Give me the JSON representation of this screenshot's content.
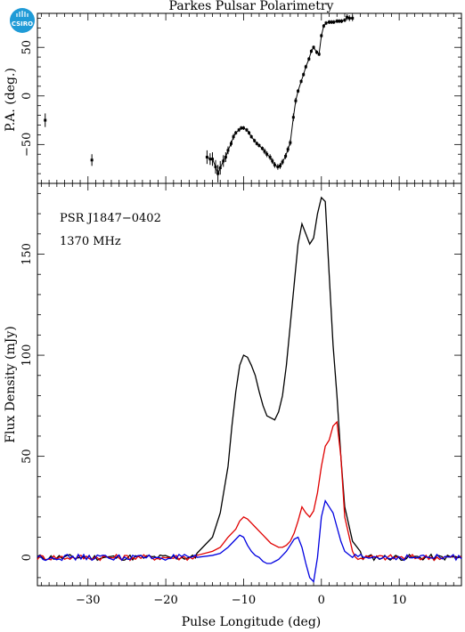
{
  "logo": {
    "text": "CSIRO",
    "color": "#1f9bd7"
  },
  "chart_data": [
    {
      "type": "scatter",
      "title": "Parkes Pulsar Polarimetry",
      "ylabel": "P.A. (deg.)",
      "xlim": [
        -36.5,
        18
      ],
      "ylim": [
        -90,
        85
      ],
      "yticks": [
        -50,
        0,
        50
      ],
      "points": [
        {
          "x": -35.5,
          "y": -25,
          "err": 7
        },
        {
          "x": -29.5,
          "y": -66,
          "err": 6
        },
        {
          "x": -14.7,
          "y": -63,
          "err": 7
        },
        {
          "x": -14.3,
          "y": -65,
          "err": 6
        },
        {
          "x": -14.0,
          "y": -65,
          "err": 7
        },
        {
          "x": -13.6,
          "y": -73,
          "err": 7
        },
        {
          "x": -13.3,
          "y": -80,
          "err": 9
        },
        {
          "x": -13.0,
          "y": -74,
          "err": 7
        },
        {
          "x": -12.6,
          "y": -67,
          "err": 6
        },
        {
          "x": -12.3,
          "y": -63,
          "err": 5
        },
        {
          "x": -12.0,
          "y": -56,
          "err": 4
        },
        {
          "x": -11.6,
          "y": -49,
          "err": 3
        },
        {
          "x": -11.3,
          "y": -42,
          "err": 3
        },
        {
          "x": -11.0,
          "y": -38,
          "err": 2
        },
        {
          "x": -10.6,
          "y": -35,
          "err": 2
        },
        {
          "x": -10.3,
          "y": -33,
          "err": 2
        },
        {
          "x": -10.0,
          "y": -33,
          "err": 2
        },
        {
          "x": -9.6,
          "y": -35,
          "err": 2
        },
        {
          "x": -9.3,
          "y": -38,
          "err": 2
        },
        {
          "x": -9.0,
          "y": -42,
          "err": 2
        },
        {
          "x": -8.6,
          "y": -46,
          "err": 2
        },
        {
          "x": -8.3,
          "y": -49,
          "err": 2
        },
        {
          "x": -8.0,
          "y": -51,
          "err": 2
        },
        {
          "x": -7.6,
          "y": -54,
          "err": 2
        },
        {
          "x": -7.3,
          "y": -57,
          "err": 3
        },
        {
          "x": -7.0,
          "y": -60,
          "err": 3
        },
        {
          "x": -6.6,
          "y": -63,
          "err": 3
        },
        {
          "x": -6.3,
          "y": -67,
          "err": 3
        },
        {
          "x": -6.0,
          "y": -71,
          "err": 3
        },
        {
          "x": -5.6,
          "y": -73,
          "err": 3
        },
        {
          "x": -5.3,
          "y": -72,
          "err": 3
        },
        {
          "x": -5.0,
          "y": -68,
          "err": 3
        },
        {
          "x": -4.6,
          "y": -62,
          "err": 3
        },
        {
          "x": -4.3,
          "y": -55,
          "err": 3
        },
        {
          "x": -4.0,
          "y": -48,
          "err": 3
        },
        {
          "x": -3.6,
          "y": -22,
          "err": 4
        },
        {
          "x": -3.3,
          "y": -5,
          "err": 3
        },
        {
          "x": -3.0,
          "y": 5,
          "err": 2
        },
        {
          "x": -2.6,
          "y": 15,
          "err": 2
        },
        {
          "x": -2.3,
          "y": 22,
          "err": 2
        },
        {
          "x": -2.0,
          "y": 30,
          "err": 2
        },
        {
          "x": -1.6,
          "y": 38,
          "err": 2
        },
        {
          "x": -1.3,
          "y": 46,
          "err": 2
        },
        {
          "x": -1.0,
          "y": 50,
          "err": 2
        },
        {
          "x": -0.6,
          "y": 45,
          "err": 2
        },
        {
          "x": -0.3,
          "y": 43,
          "err": 2
        },
        {
          "x": 0.0,
          "y": 62,
          "err": 2
        },
        {
          "x": 0.3,
          "y": 72,
          "err": 2
        },
        {
          "x": 0.6,
          "y": 75,
          "err": 2
        },
        {
          "x": 1.0,
          "y": 76,
          "err": 2
        },
        {
          "x": 1.3,
          "y": 76,
          "err": 2
        },
        {
          "x": 1.6,
          "y": 76,
          "err": 2
        },
        {
          "x": 2.0,
          "y": 77,
          "err": 2
        },
        {
          "x": 2.3,
          "y": 77,
          "err": 2
        },
        {
          "x": 2.6,
          "y": 77,
          "err": 2
        },
        {
          "x": 3.0,
          "y": 78,
          "err": 2
        },
        {
          "x": 3.3,
          "y": 81,
          "err": 3
        },
        {
          "x": 3.6,
          "y": 80,
          "err": 3
        },
        {
          "x": 4.0,
          "y": 80,
          "err": 3
        }
      ]
    },
    {
      "type": "line",
      "xlabel": "Pulse Longitude (deg)",
      "ylabel": "Flux Density (mJy)",
      "annotations": [
        "PSR J1847−0402",
        "1370 MHz"
      ],
      "xlim": [
        -36.5,
        18
      ],
      "ylim": [
        -14,
        185
      ],
      "xticks": [
        -30,
        -20,
        -10,
        0,
        10
      ],
      "yticks": [
        0,
        50,
        100,
        150
      ],
      "series": [
        {
          "color": "#000000",
          "x": [
            -16,
            -14,
            -13,
            -12,
            -11.5,
            -11,
            -10.5,
            -10,
            -9.5,
            -9,
            -8.5,
            -8,
            -7.5,
            -7,
            -6.5,
            -6,
            -5.5,
            -5,
            -4.5,
            -4,
            -3.5,
            -3,
            -2.5,
            -2,
            -1.5,
            -1,
            -0.5,
            0,
            0.5,
            1,
            1.5,
            2,
            2.5,
            3,
            4,
            5
          ],
          "y": [
            2,
            10,
            22,
            45,
            65,
            82,
            95,
            100,
            99,
            95,
            90,
            82,
            75,
            70,
            69,
            68,
            72,
            80,
            95,
            115,
            135,
            155,
            165,
            160,
            155,
            158,
            170,
            178,
            176,
            140,
            105,
            80,
            50,
            25,
            8,
            3
          ]
        },
        {
          "color": "#e00000",
          "x": [
            -16,
            -14,
            -13,
            -12,
            -11,
            -10.5,
            -10,
            -9.5,
            -9,
            -8.5,
            -8,
            -7.5,
            -7,
            -6.5,
            -6,
            -5.5,
            -5,
            -4.5,
            -4,
            -3.5,
            -3,
            -2.5,
            -2,
            -1.5,
            -1,
            -0.5,
            0,
            0.5,
            1,
            1.5,
            2,
            2.5,
            3,
            4
          ],
          "y": [
            1,
            3,
            5,
            10,
            14,
            18,
            20,
            19,
            17,
            15,
            13,
            11,
            9,
            7,
            6,
            5,
            5,
            6,
            8,
            12,
            18,
            25,
            22,
            20,
            23,
            32,
            45,
            55,
            58,
            65,
            67,
            50,
            20,
            3
          ]
        },
        {
          "color": "#0000e0",
          "x": [
            -16,
            -14,
            -13,
            -12,
            -11,
            -10.5,
            -10,
            -9.5,
            -9,
            -8.5,
            -8,
            -7.5,
            -7,
            -6.5,
            -6,
            -5.5,
            -5,
            -4.5,
            -4,
            -3.5,
            -3,
            -2.5,
            -2,
            -1.5,
            -1,
            -0.5,
            0,
            0.5,
            1,
            1.5,
            2,
            2.5,
            3,
            4
          ],
          "y": [
            0,
            1,
            2,
            5,
            9,
            11,
            10,
            6,
            3,
            1,
            0,
            -2,
            -3,
            -3,
            -2,
            -1,
            1,
            3,
            6,
            9,
            10,
            5,
            -3,
            -10,
            -12,
            0,
            20,
            28,
            25,
            22,
            15,
            8,
            3,
            0
          ]
        }
      ]
    }
  ]
}
